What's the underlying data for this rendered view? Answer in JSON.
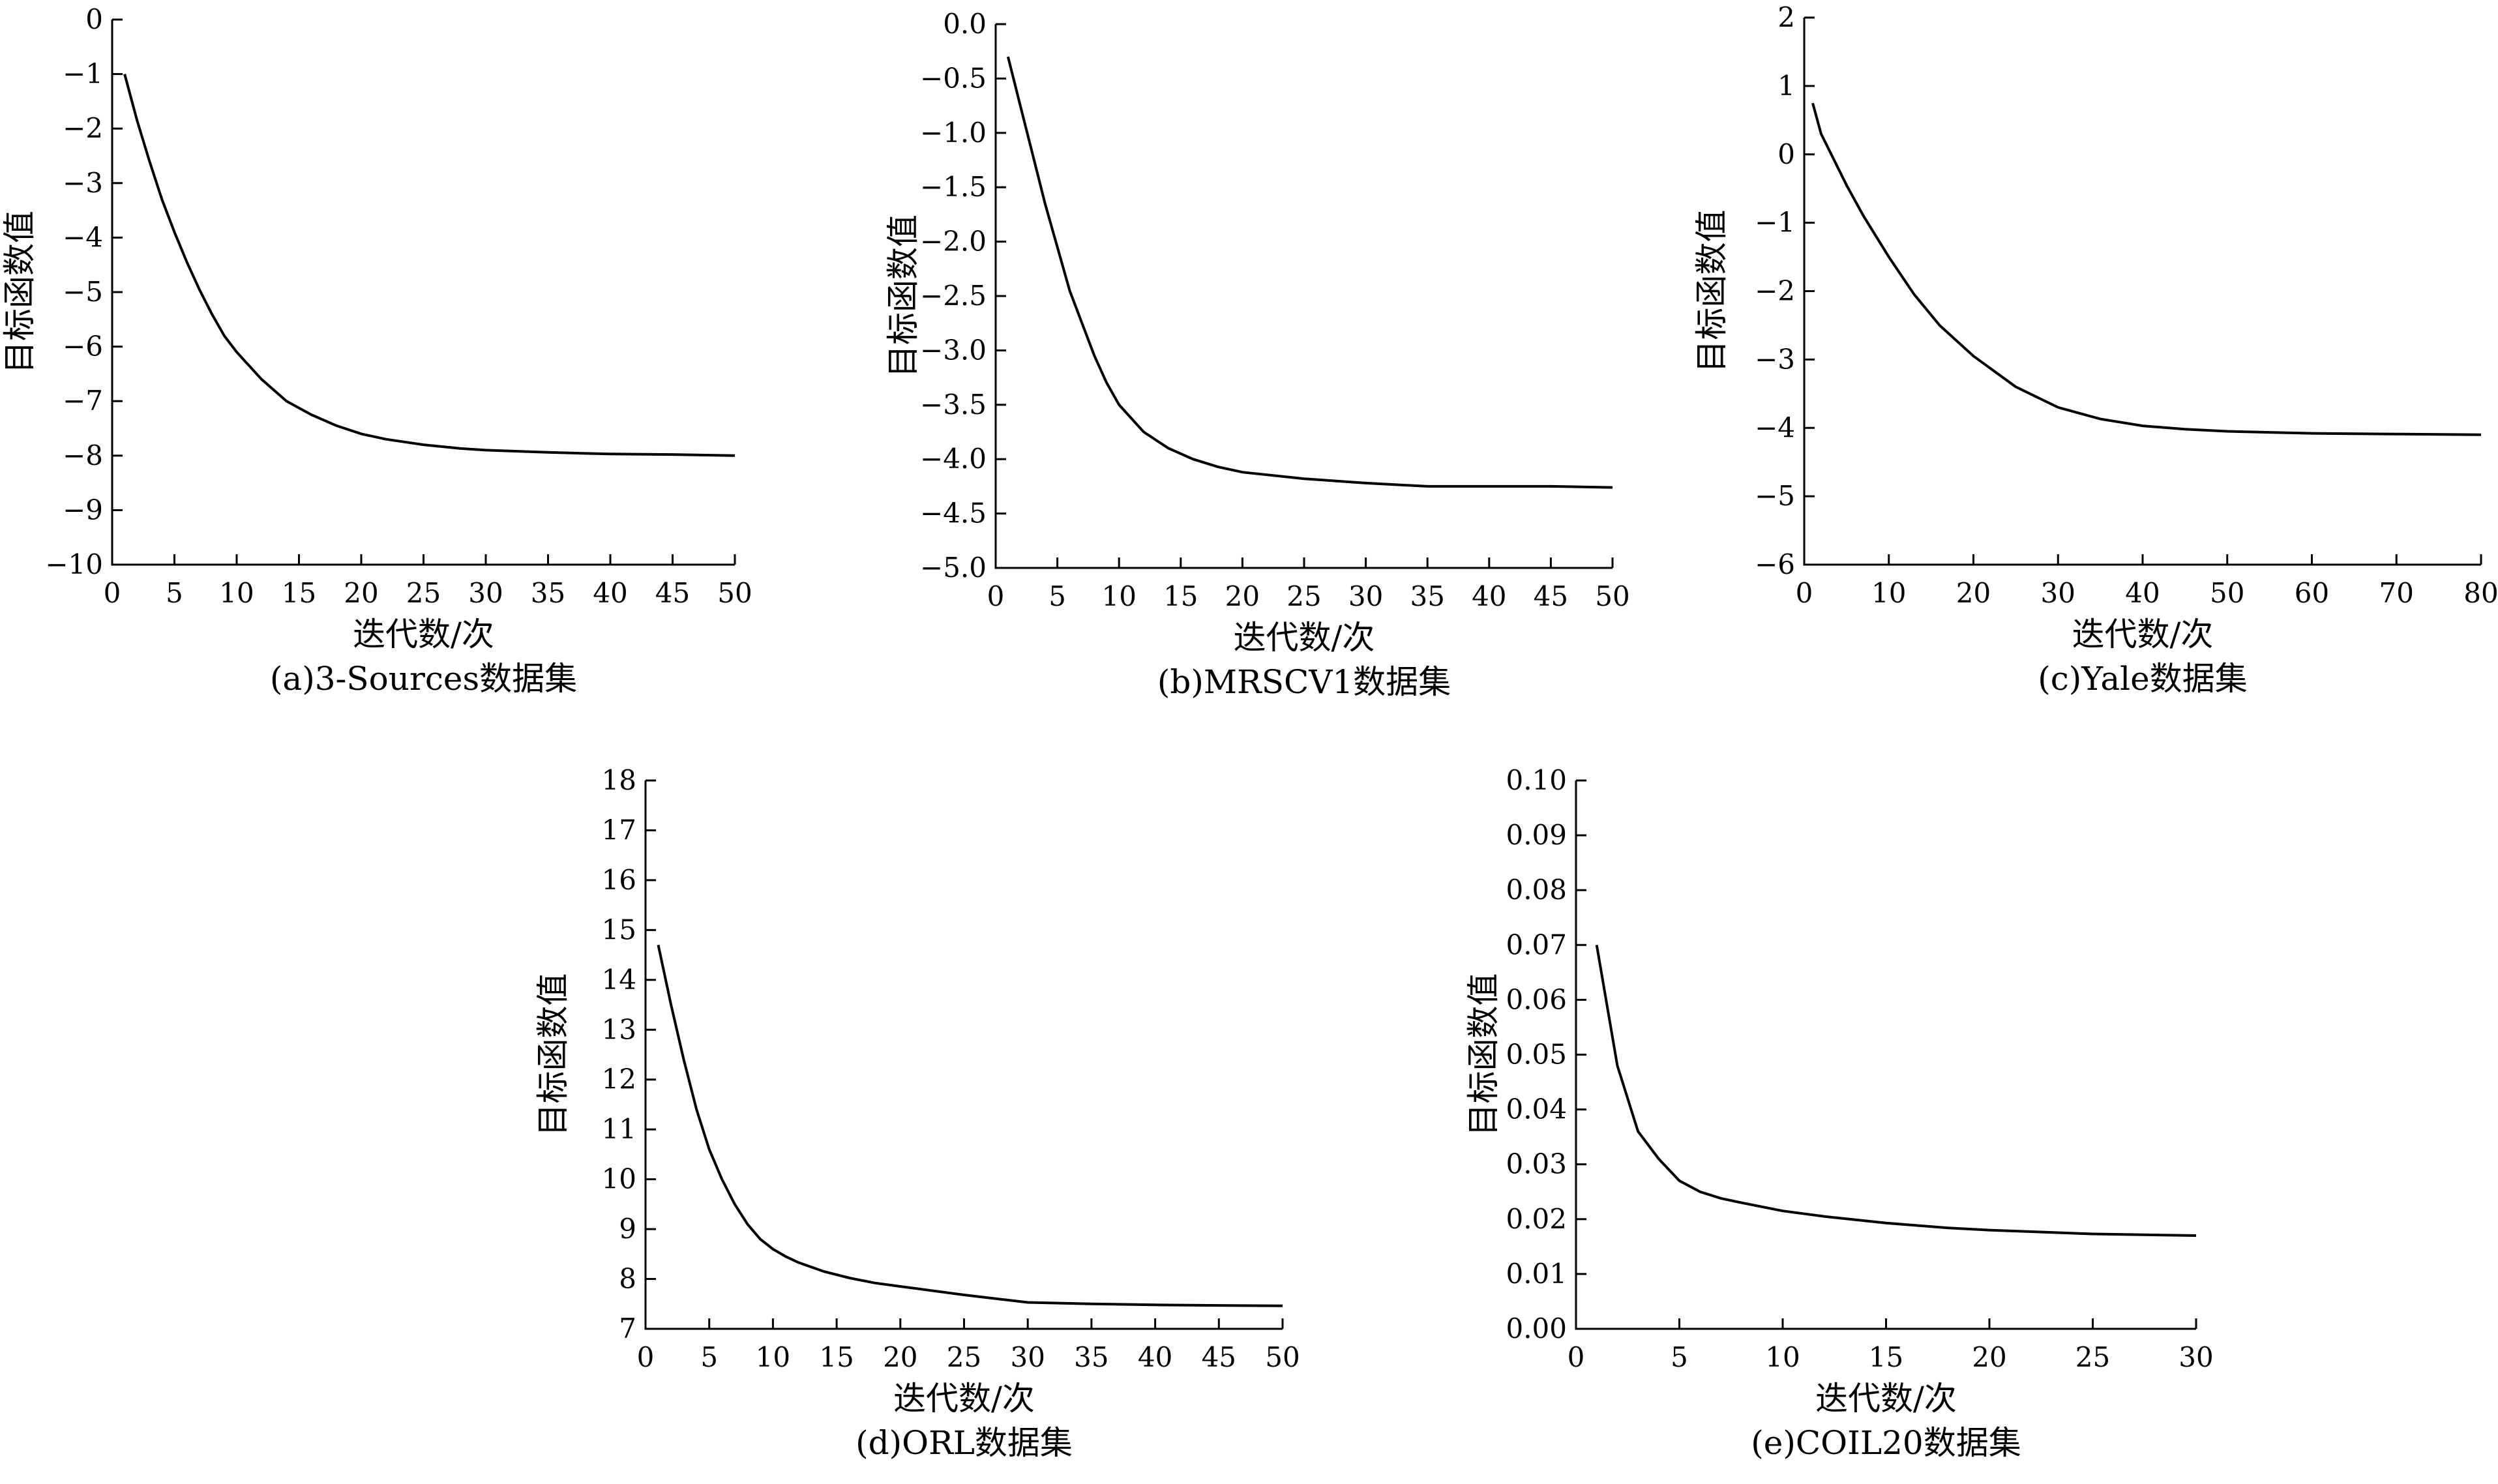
{
  "figure": {
    "colors": {
      "ink": "#000000",
      "background": "#ffffff"
    }
  },
  "chart_data": [
    {
      "type": "line",
      "caption": "(a)3-Sources数据集",
      "xlabel": "迭代数/次",
      "ylabel": "目标函数值",
      "xlim": [
        0,
        50
      ],
      "ylim": [
        -10,
        0
      ],
      "xticks": [
        0,
        5,
        10,
        15,
        20,
        25,
        30,
        35,
        40,
        45,
        50
      ],
      "yticks": [
        0,
        -1,
        -2,
        -3,
        -4,
        -5,
        -6,
        -7,
        -8,
        -9,
        -10
      ],
      "ytick_labels": [
        "0",
        "−1",
        "−2",
        "−3",
        "−4",
        "−5",
        "−6",
        "−7",
        "−8",
        "−9",
        "−10"
      ],
      "grid": false,
      "series": [
        {
          "x": [
            1,
            2,
            3,
            4,
            5,
            6,
            7,
            8,
            9,
            10,
            12,
            14,
            16,
            18,
            20,
            22,
            25,
            28,
            30,
            35,
            40,
            45,
            50
          ],
          "y": [
            -1.0,
            -1.85,
            -2.6,
            -3.3,
            -3.9,
            -4.45,
            -4.95,
            -5.4,
            -5.8,
            -6.1,
            -6.6,
            -7.0,
            -7.25,
            -7.45,
            -7.6,
            -7.7,
            -7.8,
            -7.87,
            -7.9,
            -7.94,
            -7.97,
            -7.98,
            -8.0
          ]
        }
      ]
    },
    {
      "type": "line",
      "caption": "(b)MRSCV1数据集",
      "xlabel": "迭代数/次",
      "ylabel": "目标函数值",
      "xlim": [
        0,
        50
      ],
      "ylim": [
        -5.0,
        0.0
      ],
      "xticks": [
        0,
        5,
        10,
        15,
        20,
        25,
        30,
        35,
        40,
        45,
        50
      ],
      "yticks": [
        0.0,
        -0.5,
        -1.0,
        -1.5,
        -2.0,
        -2.5,
        -3.0,
        -3.5,
        -4.0,
        -4.5,
        -5.0
      ],
      "ytick_labels": [
        "0.0",
        "−0.5",
        "−1.0",
        "−1.5",
        "−2.0",
        "−2.5",
        "−3.0",
        "−3.5",
        "−4.0",
        "−4.5",
        "−5.0"
      ],
      "grid": false,
      "series": [
        {
          "x": [
            1,
            2,
            3,
            4,
            5,
            6,
            7,
            8,
            9,
            10,
            12,
            14,
            16,
            18,
            20,
            25,
            30,
            35,
            40,
            45,
            50
          ],
          "y": [
            -0.3,
            -0.75,
            -1.2,
            -1.65,
            -2.05,
            -2.45,
            -2.75,
            -3.05,
            -3.3,
            -3.5,
            -3.75,
            -3.9,
            -4.0,
            -4.07,
            -4.12,
            -4.18,
            -4.22,
            -4.25,
            -4.25,
            -4.25,
            -4.26
          ]
        }
      ]
    },
    {
      "type": "line",
      "caption": "(c)Yale数据集",
      "xlabel": "迭代数/次",
      "ylabel": "目标函数值",
      "xlim": [
        0,
        80
      ],
      "ylim": [
        -6,
        2
      ],
      "xticks": [
        0,
        10,
        20,
        30,
        40,
        50,
        60,
        70,
        80
      ],
      "yticks": [
        2,
        1,
        0,
        -1,
        -2,
        -3,
        -4,
        -5,
        -6
      ],
      "ytick_labels": [
        "2",
        "1",
        "0",
        "−1",
        "−2",
        "−3",
        "−4",
        "−5",
        "−6"
      ],
      "grid": false,
      "series": [
        {
          "x": [
            1,
            2,
            3,
            5,
            7,
            10,
            13,
            16,
            20,
            25,
            30,
            35,
            40,
            45,
            50,
            60,
            70,
            80
          ],
          "y": [
            0.75,
            0.3,
            0.05,
            -0.45,
            -0.9,
            -1.5,
            -2.05,
            -2.5,
            -2.95,
            -3.4,
            -3.7,
            -3.87,
            -3.97,
            -4.02,
            -4.05,
            -4.08,
            -4.09,
            -4.1
          ]
        }
      ]
    },
    {
      "type": "line",
      "caption": "(d)ORL数据集",
      "xlabel": "迭代数/次",
      "ylabel": "目标函数值",
      "xlim": [
        0,
        50
      ],
      "ylim": [
        7,
        18
      ],
      "xticks": [
        0,
        5,
        10,
        15,
        20,
        25,
        30,
        35,
        40,
        45,
        50
      ],
      "yticks": [
        7,
        8,
        9,
        10,
        11,
        12,
        13,
        14,
        15,
        16,
        17,
        18
      ],
      "ytick_labels": [
        "7",
        "8",
        "9",
        "10",
        "11",
        "12",
        "13",
        "14",
        "15",
        "16",
        "17",
        "18"
      ],
      "grid": false,
      "series": [
        {
          "x": [
            1,
            2,
            3,
            4,
            5,
            6,
            7,
            8,
            9,
            10,
            11,
            12,
            14,
            16,
            18,
            20,
            25,
            30,
            35,
            40,
            45,
            50
          ],
          "y": [
            14.7,
            13.5,
            12.4,
            11.4,
            10.6,
            10.0,
            9.5,
            9.1,
            8.8,
            8.6,
            8.45,
            8.33,
            8.15,
            8.02,
            7.92,
            7.85,
            7.68,
            7.53,
            7.5,
            7.48,
            7.47,
            7.46
          ]
        }
      ]
    },
    {
      "type": "line",
      "caption": "(e)COIL20数据集",
      "xlabel": "迭代数/次",
      "ylabel": "目标函数值",
      "xlim": [
        0,
        30
      ],
      "ylim": [
        0.0,
        0.1
      ],
      "xticks": [
        0,
        5,
        10,
        15,
        20,
        25,
        30
      ],
      "yticks": [
        0.0,
        0.01,
        0.02,
        0.03,
        0.04,
        0.05,
        0.06,
        0.07,
        0.08,
        0.09,
        0.1
      ],
      "ytick_labels": [
        "0.00",
        "0.01",
        "0.02",
        "0.03",
        "0.04",
        "0.05",
        "0.06",
        "0.07",
        "0.08",
        "0.09",
        "0.10"
      ],
      "grid": false,
      "series": [
        {
          "x": [
            1,
            2,
            3,
            4,
            5,
            6,
            7,
            8,
            10,
            12,
            15,
            18,
            20,
            25,
            30
          ],
          "y": [
            0.07,
            0.048,
            0.036,
            0.031,
            0.027,
            0.025,
            0.0238,
            0.023,
            0.0215,
            0.0205,
            0.0193,
            0.0184,
            0.018,
            0.0173,
            0.017
          ]
        }
      ]
    }
  ]
}
